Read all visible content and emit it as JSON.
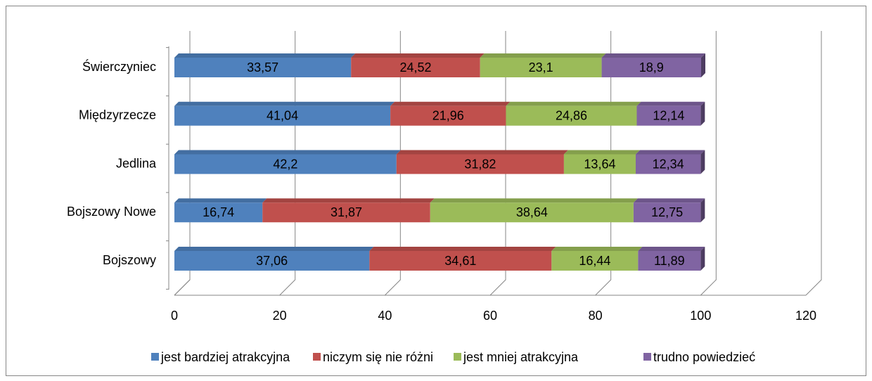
{
  "chart_data": {
    "type": "bar",
    "stacked": true,
    "orientation": "horizontal",
    "categories": [
      "Bojszowy",
      "Bojszowy Nowe",
      "Jedlina",
      "Międzyrzecze",
      "Świerczyniec"
    ],
    "series": [
      {
        "name": "jest bardziej atrakcyjna",
        "color": "#4f81bd",
        "values": [
          37.06,
          16.74,
          42.2,
          41.04,
          33.57
        ],
        "value_labels": [
          "37,06",
          "16,74",
          "42,2",
          "41,04",
          "33,57"
        ]
      },
      {
        "name": "niczym się nie różni",
        "color": "#c0504d",
        "values": [
          34.61,
          31.87,
          31.82,
          21.96,
          24.52
        ],
        "value_labels": [
          "34,61",
          "31,87",
          "31,82",
          "21,96",
          "24,52"
        ]
      },
      {
        "name": "jest mniej atrakcyjna",
        "color": "#9bbb59",
        "values": [
          16.44,
          38.64,
          13.64,
          24.86,
          23.1
        ],
        "value_labels": [
          "16,44",
          "38,64",
          "13,64",
          "24,86",
          "23,1"
        ]
      },
      {
        "name": "trudno powiedzieć",
        "color": "#8064a2",
        "values": [
          11.89,
          12.75,
          12.34,
          12.14,
          18.9
        ],
        "value_labels": [
          "11,89",
          "12,75",
          "12,34",
          "12,14",
          "18,9"
        ]
      }
    ],
    "xlim": [
      0,
      120
    ],
    "xticks": [
      0,
      20,
      40,
      60,
      80,
      100,
      120
    ],
    "grid": true,
    "legend": "bottom"
  }
}
